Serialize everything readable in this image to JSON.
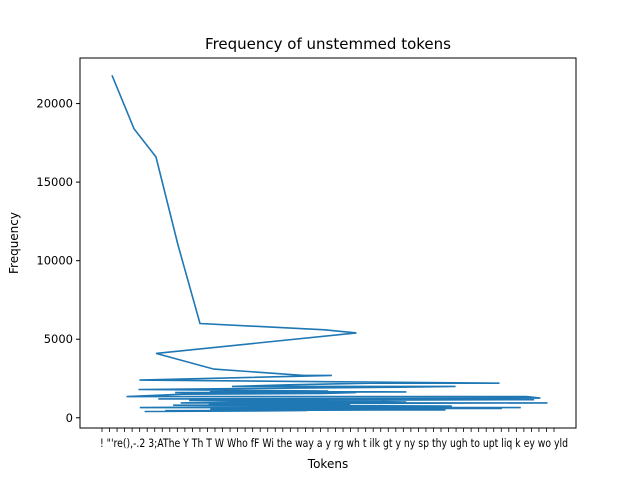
{
  "chart_data": {
    "type": "line",
    "title": "Frequency of unstemmed tokens",
    "xlabel": "Tokens",
    "ylabel": "Frequency",
    "ylim": [
      -650,
      22900
    ],
    "yticks": [
      0,
      5000,
      10000,
      15000,
      20000
    ],
    "ytick_labels": [
      "0",
      "5000",
      "10000",
      "15000",
      "20000"
    ],
    "grid": false,
    "xticks_legible_fragments": [
      "!",
      "\"",
      "'re",
      "(",
      ")",
      ",",
      "-",
      ".",
      "2",
      "3",
      ";",
      "A"
    ],
    "xtick_text_rendered": "! \"'re(),-.2 3;AThe Y Th T W Who fF Wi the way a y rg wh t ilk gt y ny sp thy ugh to upt liq k ey wo yld",
    "series": [
      {
        "index": [
          0,
          1,
          2,
          3,
          4,
          5,
          6,
          7,
          8,
          9,
          10,
          11,
          12,
          13,
          14,
          15,
          16,
          17,
          18,
          19,
          20,
          21,
          22,
          23,
          24,
          25,
          26,
          27,
          28,
          29,
          30,
          31,
          32,
          33,
          34,
          35,
          36,
          37,
          38,
          39,
          40,
          41,
          42,
          43,
          44,
          45,
          46,
          47,
          48,
          49,
          50,
          51,
          52,
          53,
          54,
          55,
          56,
          57,
          58,
          59,
          60
        ],
        "values": [
          21800,
          18400,
          16600,
          11000,
          6000,
          5600,
          5400,
          4100,
          3100,
          2700,
          2700,
          2400,
          2200,
          2200,
          2100,
          2000,
          2000,
          1950,
          1800,
          1700,
          1700,
          1650,
          1600,
          1600,
          1550,
          1500,
          1350,
          1350,
          1250,
          1200,
          1200,
          1150,
          1100,
          1100,
          1050,
          1000,
          1000,
          950,
          950,
          900,
          900,
          850,
          800,
          800,
          750,
          700,
          700,
          650,
          650,
          650,
          600,
          600,
          550,
          550,
          500,
          500,
          500,
          450,
          450,
          450,
          400
        ]
      }
    ]
  }
}
